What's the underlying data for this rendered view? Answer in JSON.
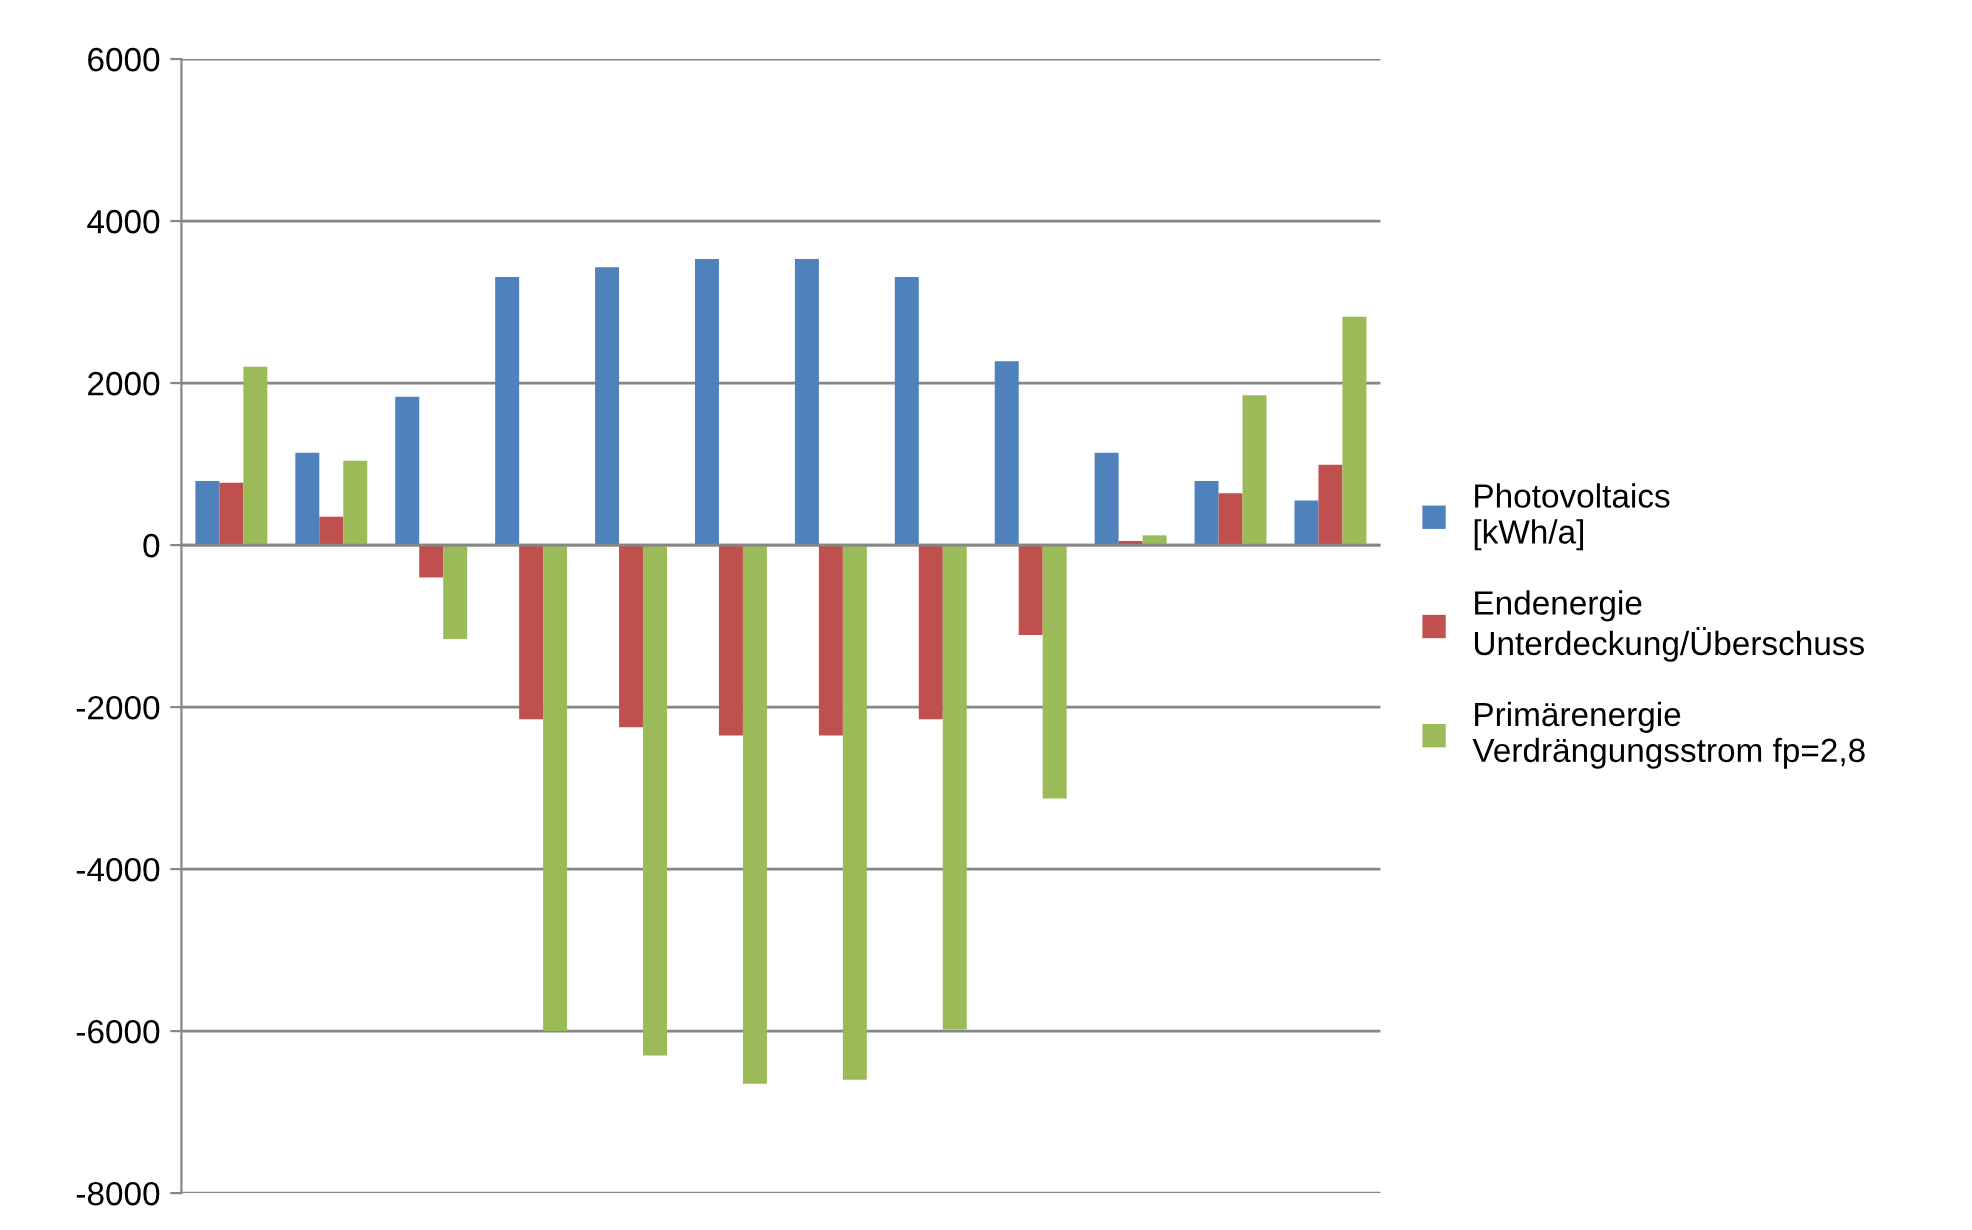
{
  "chart_data": {
    "type": "bar",
    "categories": [
      null,
      null,
      null,
      null,
      null,
      null,
      null,
      null,
      null,
      null,
      null,
      null
    ],
    "series": [
      {
        "name": "Photovoltaics\n[kWh/a]",
        "color": "#4f81bd",
        "values": [
          790,
          1140,
          1830,
          3310,
          3430,
          3530,
          3530,
          3310,
          2270,
          1140,
          790,
          550
        ]
      },
      {
        "name": "Endenergie\nUnterdeckung/Überschuss",
        "color": "#c0504d",
        "values": [
          770,
          350,
          -400,
          -2150,
          -2250,
          -2350,
          -2350,
          -2150,
          -1110,
          50,
          640,
          990
        ]
      },
      {
        "name": "Primärenergie\nVerdrängungsstrom fp=2,8",
        "color": "#9bbb59",
        "values": [
          2200,
          1040,
          -1160,
          -6000,
          -6300,
          -6650,
          -6600,
          -5980,
          -3130,
          120,
          1850,
          2820
        ]
      }
    ],
    "ylim": [
      -8000,
      6000
    ],
    "yticks": [
      -8000,
      -6000,
      -4000,
      -2000,
      0,
      2000,
      4000,
      6000
    ],
    "grid": "y",
    "legend": "right"
  }
}
